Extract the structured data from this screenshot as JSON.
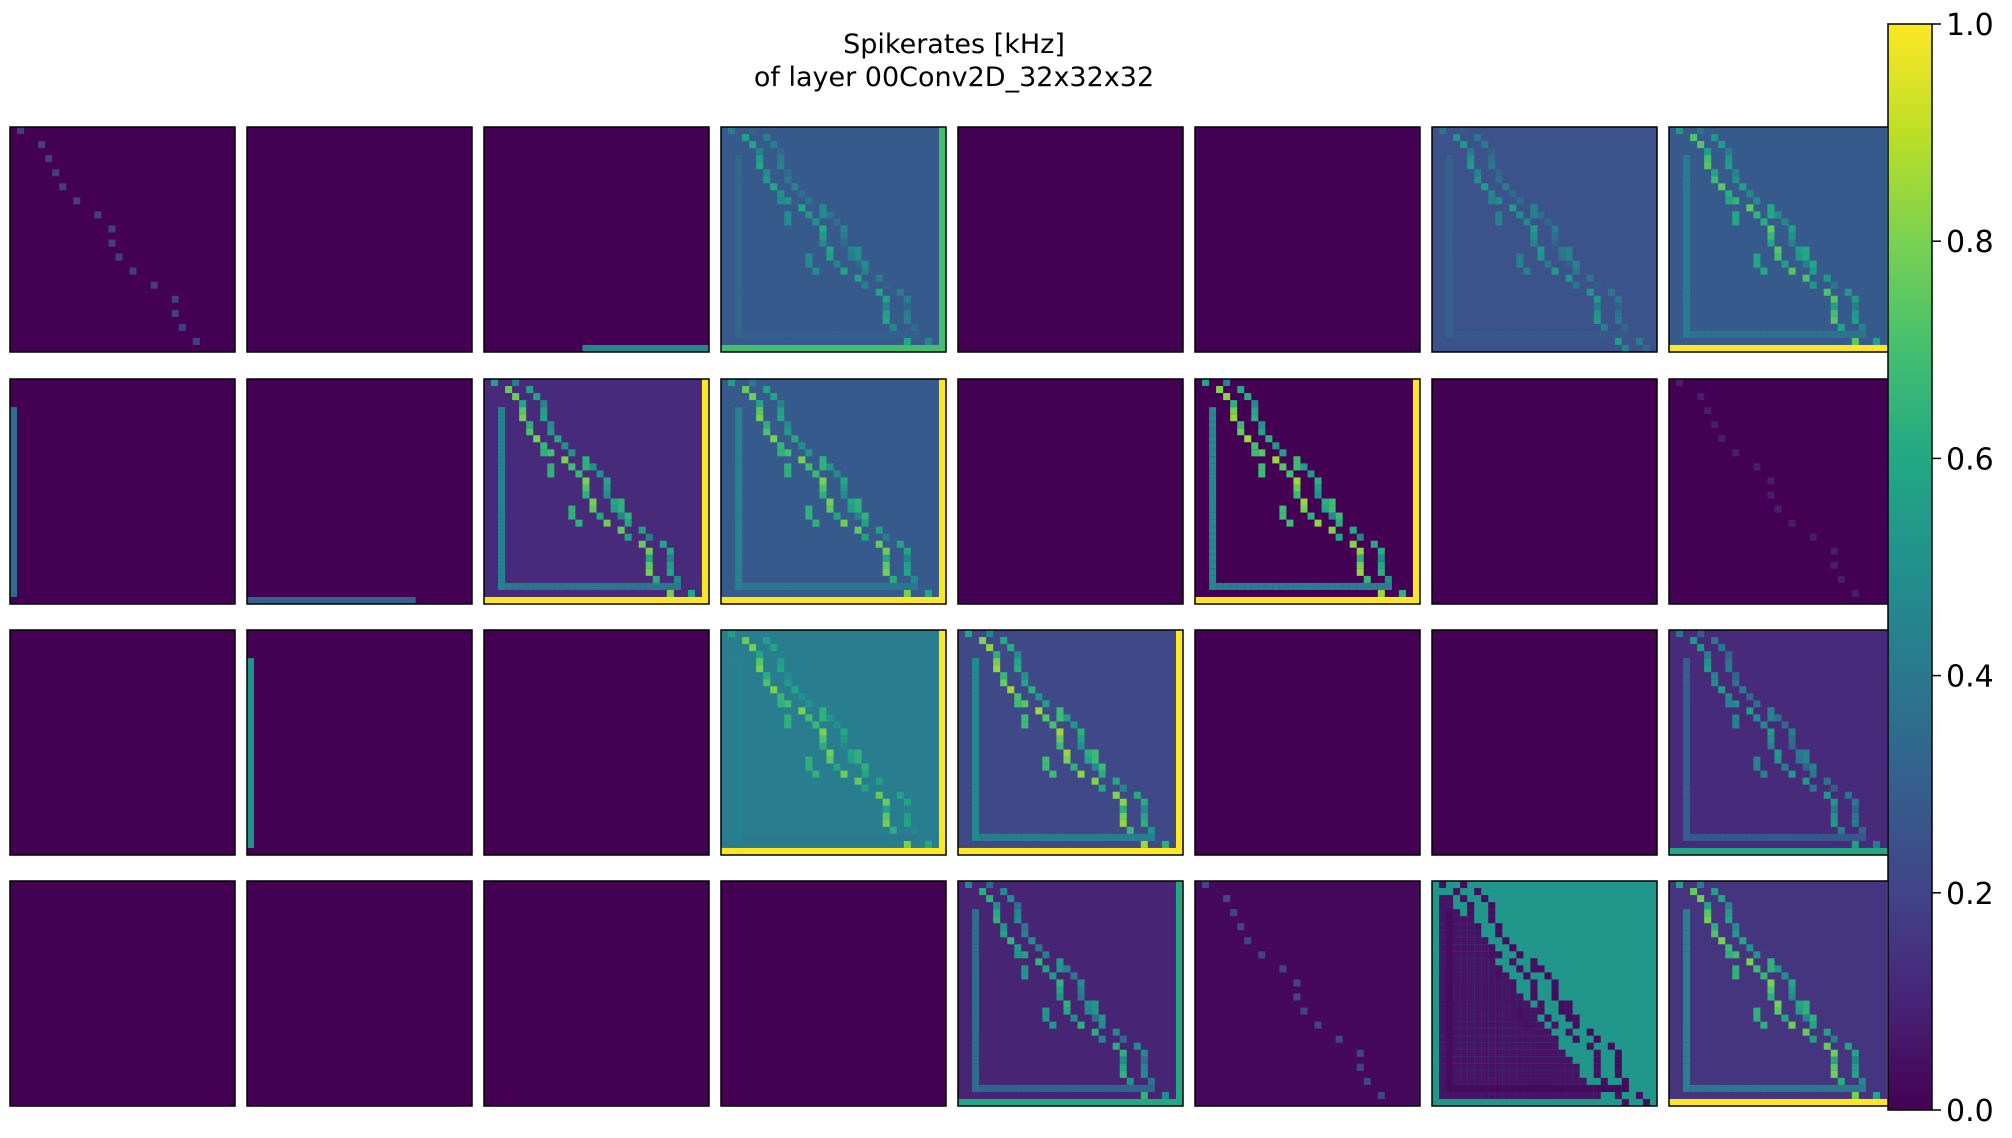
{
  "chart_data": {
    "type": "heatmap",
    "title": [
      "Spikerates [kHz]",
      "of layer 00Conv2D_32x32x32"
    ],
    "grid": {
      "rows": 4,
      "cols": 8,
      "pixels": 32
    },
    "colormap": "viridis",
    "colorbar": {
      "vmin": 0.0,
      "vmax": 1.0,
      "ticks": [
        "0.0",
        "0.2",
        "0.4",
        "0.6",
        "0.8",
        "1.0"
      ],
      "placement": "right"
    },
    "panels": [
      {
        "index": 0,
        "pattern": "sparse-diagonal",
        "bg": 0.0,
        "line": 0.18
      },
      {
        "index": 1,
        "pattern": "empty",
        "bg": 0.0
      },
      {
        "index": 2,
        "pattern": "bottom-right-bar",
        "bg": 0.0,
        "line": 0.45
      },
      {
        "index": 3,
        "pattern": "edge-diagonal",
        "bg": 0.28,
        "line": 0.6,
        "frame": 0.7
      },
      {
        "index": 4,
        "pattern": "empty",
        "bg": 0.0
      },
      {
        "index": 5,
        "pattern": "empty",
        "bg": 0.0
      },
      {
        "index": 6,
        "pattern": "edge-diagonal",
        "bg": 0.25,
        "line": 0.55,
        "frame": 0.45
      },
      {
        "index": 7,
        "pattern": "edge-diagonal",
        "bg": 0.28,
        "line": 0.75,
        "frame": 1.0
      },
      {
        "index": 8,
        "pattern": "left-bar",
        "bg": 0.0,
        "line": 0.35
      },
      {
        "index": 9,
        "pattern": "bottom-bar",
        "bg": 0.0,
        "line": 0.3
      },
      {
        "index": 10,
        "pattern": "edge-diagonal",
        "bg": 0.12,
        "line": 0.8,
        "frame": 1.0
      },
      {
        "index": 11,
        "pattern": "edge-diagonal",
        "bg": 0.28,
        "line": 0.8,
        "frame": 1.0
      },
      {
        "index": 12,
        "pattern": "empty",
        "bg": 0.0
      },
      {
        "index": 13,
        "pattern": "edge-diagonal",
        "bg": 0.0,
        "line": 0.85,
        "frame": 1.0
      },
      {
        "index": 14,
        "pattern": "empty",
        "bg": 0.0
      },
      {
        "index": 15,
        "pattern": "sparse-diagonal",
        "bg": 0.0,
        "line": 0.08
      },
      {
        "index": 16,
        "pattern": "empty",
        "bg": 0.0
      },
      {
        "index": 17,
        "pattern": "left-bar",
        "bg": 0.0,
        "line": 0.5
      },
      {
        "index": 18,
        "pattern": "empty",
        "bg": 0.0
      },
      {
        "index": 19,
        "pattern": "edge-diagonal",
        "bg": 0.42,
        "line": 0.8,
        "frame": 1.0
      },
      {
        "index": 20,
        "pattern": "edge-diagonal",
        "bg": 0.22,
        "line": 0.85,
        "frame": 1.0
      },
      {
        "index": 21,
        "pattern": "empty",
        "bg": 0.0
      },
      {
        "index": 22,
        "pattern": "empty",
        "bg": 0.0
      },
      {
        "index": 23,
        "pattern": "edge-diagonal",
        "bg": 0.12,
        "line": 0.55,
        "frame": 0.6
      },
      {
        "index": 24,
        "pattern": "empty",
        "bg": 0.0
      },
      {
        "index": 25,
        "pattern": "empty",
        "bg": 0.0
      },
      {
        "index": 26,
        "pattern": "empty",
        "bg": 0.0
      },
      {
        "index": 27,
        "pattern": "empty",
        "bg": 0.0
      },
      {
        "index": 28,
        "pattern": "edge-diagonal",
        "bg": 0.1,
        "line": 0.65,
        "frame": 0.6
      },
      {
        "index": 29,
        "pattern": "sparse-diagonal",
        "bg": 0.02,
        "line": 0.2
      },
      {
        "index": 30,
        "pattern": "triangle-fill",
        "bg": 0.52,
        "line": 0.05,
        "frame": 0.45
      },
      {
        "index": 31,
        "pattern": "edge-diagonal",
        "bg": 0.15,
        "line": 0.8,
        "frame": 1.0
      }
    ]
  }
}
